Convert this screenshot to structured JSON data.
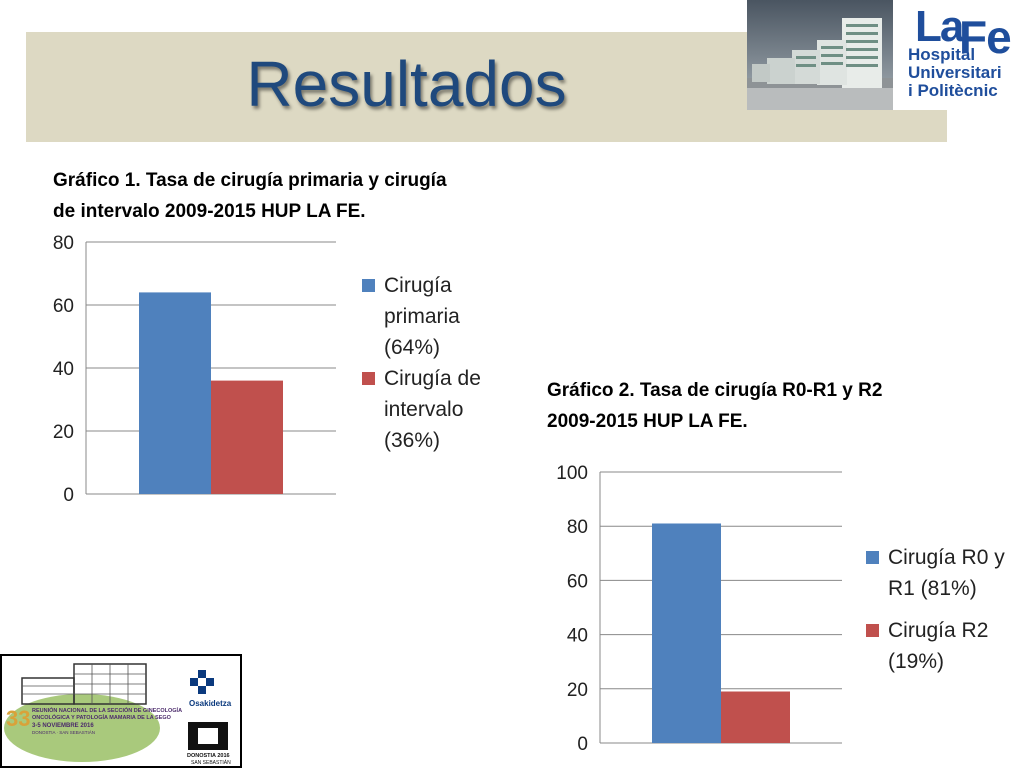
{
  "header": {
    "title": "Resultados"
  },
  "logos": {
    "lafe_la": "La",
    "lafe_fe": "Fe",
    "lafe_lines": [
      "Hospital",
      "Universitari",
      "i Politècnic"
    ],
    "osakidetza": "Osakidetza",
    "congress_number": "33",
    "congress_lines": [
      "REUNIÓN NACIONAL DE LA SECCIÓN DE GINECOLOGÍA",
      "ONCOLÓGICA Y PATOLOGÍA MAMARIA DE LA SEGO",
      "3-5 NOVIEMBRE 2016",
      "DONOSTIA · SAN SEBASTIÁN"
    ],
    "donostia": [
      "DONOSTIA 2016",
      "SAN SEBASTIÁN"
    ]
  },
  "colors": {
    "blue": "#4f81bd",
    "red": "#c0504d",
    "title": "#1f497d",
    "band": "#ddd9c3"
  },
  "chart_data": [
    {
      "type": "bar",
      "caption": [
        "Gráfico 1.  Tasa de cirugía primaria y cirugía",
        "de intervalo 2009-2015 HUP LA FE."
      ],
      "categories": [
        ""
      ],
      "series": [
        {
          "name": [
            "Cirugía",
            "primaria",
            "(64%)"
          ],
          "values": [
            64
          ],
          "color": "#4f81bd"
        },
        {
          "name": [
            "Cirugía de",
            "intervalo",
            "(36%)"
          ],
          "values": [
            36
          ],
          "color": "#c0504d"
        }
      ],
      "ylim": [
        0,
        80
      ],
      "yticks": [
        "0",
        "20",
        "40",
        "60",
        "80"
      ],
      "grid": true,
      "legend": "right"
    },
    {
      "type": "bar",
      "caption": [
        "Gráfico 2.  Tasa de cirugía R0-R1 y R2",
        "2009-2015 HUP LA FE."
      ],
      "categories": [
        ""
      ],
      "series": [
        {
          "name": [
            "Cirugía R0 y",
            "R1 (81%)"
          ],
          "values": [
            81
          ],
          "color": "#4f81bd"
        },
        {
          "name": [
            "Cirugía R2",
            "(19%)"
          ],
          "values": [
            19
          ],
          "color": "#c0504d"
        }
      ],
      "ylim": [
        0,
        100
      ],
      "yticks": [
        "0",
        "20",
        "40",
        "60",
        "80",
        "100"
      ],
      "grid": true,
      "legend": "right"
    }
  ]
}
